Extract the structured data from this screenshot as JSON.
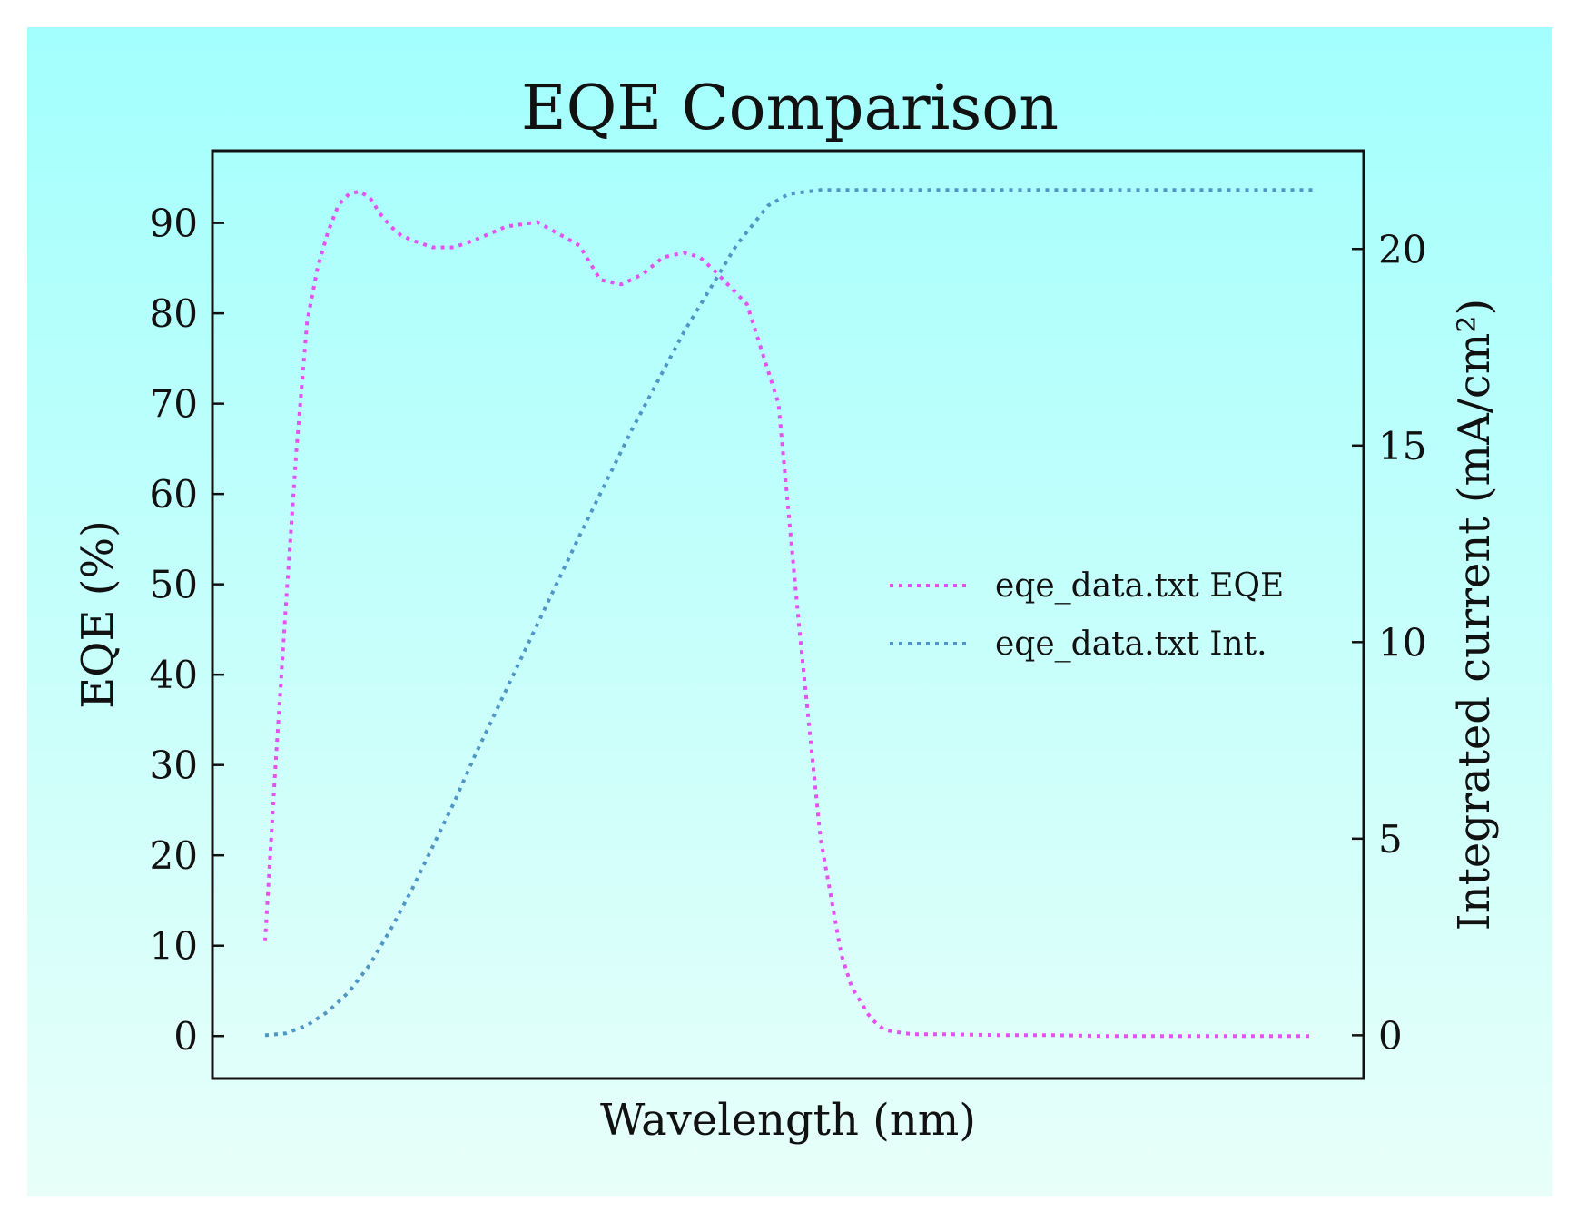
{
  "chart_data": {
    "type": "line",
    "title": "EQE Comparison",
    "xlabel": "Wavelength (nm)",
    "ylabel_left": "EQE (%)",
    "ylabel_right": "Integrated current (mA/cm²)",
    "x_tick_labels_visible": false,
    "background_gradient": {
      "top": "#a2fffd",
      "bottom": "#e8fff9"
    },
    "left_axis": {
      "ylim": [
        -4.7,
        98
      ],
      "ticks": [
        0,
        10,
        20,
        30,
        40,
        50,
        60,
        70,
        80,
        90
      ],
      "tick_labels": [
        "0",
        "10",
        "20",
        "30",
        "40",
        "50",
        "60",
        "70",
        "80",
        "90"
      ]
    },
    "right_axis": {
      "ylim": [
        -1.1,
        22.5
      ],
      "ticks": [
        0,
        5,
        10,
        15,
        20
      ],
      "tick_labels": [
        "0",
        "5",
        "10",
        "15",
        "20"
      ]
    },
    "xlim": [
      0,
      1
    ],
    "grid": false,
    "legend_position": "center-right",
    "series": [
      {
        "name": "eqe_data.txt EQE",
        "axis": "left",
        "color": "#e550f0",
        "style": "dotted",
        "x": [
          0.0,
          0.01,
          0.02,
          0.03,
          0.04,
          0.05,
          0.06,
          0.07,
          0.08,
          0.09,
          0.1,
          0.11,
          0.12,
          0.13,
          0.14,
          0.16,
          0.18,
          0.2,
          0.23,
          0.26,
          0.3,
          0.32,
          0.34,
          0.36,
          0.38,
          0.4,
          0.415,
          0.43,
          0.46,
          0.49,
          0.51,
          0.53,
          0.55,
          0.56,
          0.57,
          0.575,
          0.58,
          0.585,
          0.59,
          0.595,
          0.6,
          0.605,
          0.61,
          0.62,
          0.63,
          0.65,
          0.7,
          0.75,
          0.8,
          0.85,
          0.9,
          0.95,
          1.0
        ],
        "y": [
          10.5,
          30,
          48,
          65,
          79,
          85,
          89,
          92,
          93.2,
          93.5,
          92.8,
          91,
          89.6,
          88.6,
          88.1,
          87.3,
          87.3,
          88.1,
          89.6,
          90.1,
          87.5,
          83.7,
          83.2,
          84.3,
          86.2,
          86.7,
          86.2,
          84.6,
          81,
          70,
          45,
          22,
          9,
          5.4,
          3.5,
          2.5,
          1.8,
          1.2,
          0.8,
          0.6,
          0.5,
          0.4,
          0.3,
          0.2,
          0.2,
          0.2,
          0.1,
          0.1,
          0.0,
          0.0,
          0.0,
          0.0,
          0.0
        ]
      },
      {
        "name": "eqe_data.txt Int.",
        "axis": "right",
        "color": "#4f96c6",
        "style": "dotted",
        "x": [
          0.0,
          0.02,
          0.04,
          0.06,
          0.08,
          0.1,
          0.12,
          0.14,
          0.16,
          0.18,
          0.2,
          0.25,
          0.3,
          0.35,
          0.4,
          0.45,
          0.48,
          0.5,
          0.53,
          0.55,
          0.57,
          0.6,
          0.65,
          0.7,
          0.8,
          0.9,
          1.0
        ],
        "y": [
          0.0,
          0.05,
          0.25,
          0.6,
          1.1,
          1.8,
          2.7,
          3.7,
          4.8,
          5.9,
          7.1,
          9.9,
          12.7,
          15.4,
          17.9,
          20.1,
          21.1,
          21.4,
          21.5,
          21.5,
          21.5,
          21.5,
          21.5,
          21.5,
          21.5,
          21.5,
          21.5
        ]
      }
    ]
  }
}
